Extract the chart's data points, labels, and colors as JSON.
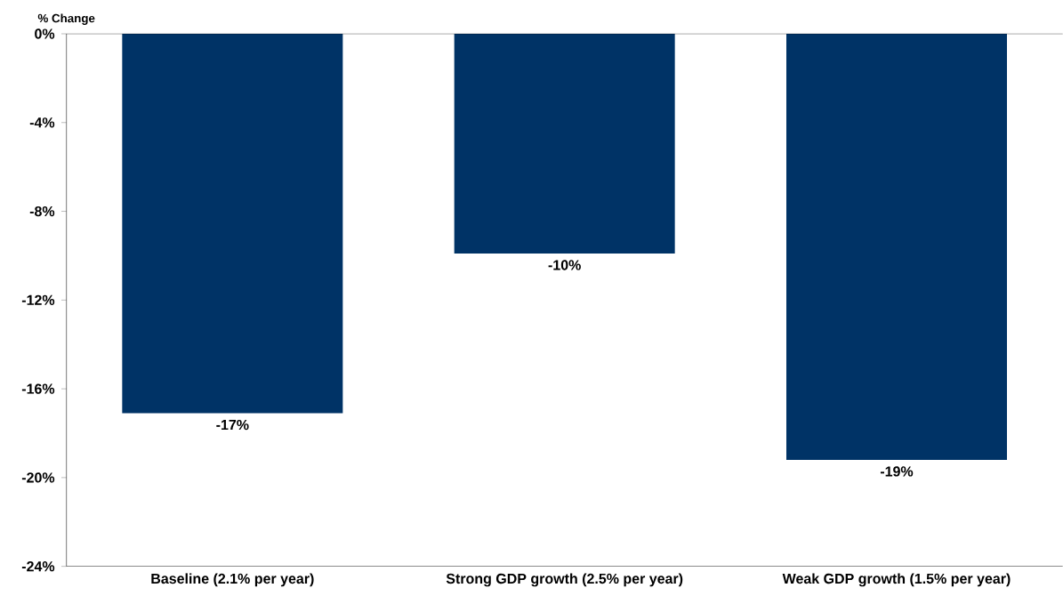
{
  "chart_data": {
    "type": "bar",
    "ylabel": "% Change",
    "categories": [
      "Baseline (2.1% per year)",
      "Strong GDP growth (2.5% per year)",
      "Weak GDP growth (1.5% per year)"
    ],
    "values": [
      -17.1,
      -9.9,
      -19.2
    ],
    "value_labels": [
      "-17%",
      "-10%",
      "-19%"
    ],
    "color": "#003366",
    "ylim": [
      -24,
      0
    ],
    "yticks": [
      {
        "value": 0,
        "label": "0%"
      },
      {
        "value": -4,
        "label": "-4%"
      },
      {
        "value": -8,
        "label": "-8%"
      },
      {
        "value": -12,
        "label": "-12%"
      },
      {
        "value": -16,
        "label": "-16%"
      },
      {
        "value": -20,
        "label": "-20%"
      },
      {
        "value": -24,
        "label": "-24%"
      }
    ]
  }
}
